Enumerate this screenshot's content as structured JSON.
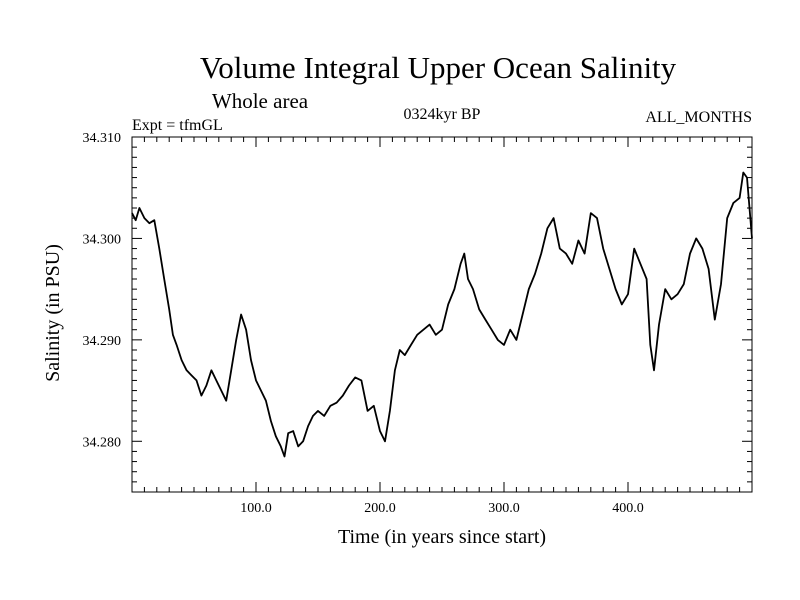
{
  "chart_data": {
    "type": "line",
    "title": "Volume Integral Upper Ocean Salinity",
    "subtitle": "Whole area",
    "annotations": {
      "left": "Expt = tfmGL",
      "center": "0324kyr BP",
      "right": "ALL_MONTHS"
    },
    "xlabel": "Time (in years since start)",
    "ylabel": "Salinity (in PSU)",
    "xlim": [
      0,
      500
    ],
    "ylim": [
      34.275,
      34.31
    ],
    "xticks": [
      100,
      200,
      300,
      400
    ],
    "xtick_labels": [
      "100.0",
      "200.0",
      "300.0",
      "400.0"
    ],
    "yticks": [
      34.28,
      34.29,
      34.3,
      34.31
    ],
    "ytick_labels": [
      "34.280",
      "34.290",
      "34.300",
      "34.310"
    ],
    "grid": false,
    "series": [
      {
        "color": "#000000",
        "x": [
          0,
          3,
          6,
          10,
          14,
          18,
          22,
          26,
          30,
          33,
          36,
          40,
          44,
          48,
          52,
          56,
          60,
          64,
          68,
          72,
          76,
          80,
          84,
          88,
          92,
          96,
          100,
          104,
          108,
          112,
          116,
          120,
          123,
          126,
          130,
          134,
          138,
          142,
          146,
          150,
          155,
          160,
          165,
          170,
          175,
          180,
          185,
          190,
          195,
          200,
          204,
          208,
          212,
          216,
          220,
          225,
          230,
          235,
          240,
          245,
          250,
          255,
          260,
          265,
          268,
          271,
          275,
          280,
          285,
          290,
          295,
          300,
          305,
          310,
          315,
          320,
          325,
          330,
          335,
          340,
          345,
          350,
          355,
          360,
          365,
          370,
          375,
          380,
          385,
          390,
          395,
          400,
          405,
          410,
          415,
          418,
          421,
          425,
          430,
          435,
          440,
          445,
          450,
          455,
          460,
          465,
          470,
          475,
          480,
          485,
          490,
          493,
          496,
          500
        ],
        "y": [
          34.3025,
          34.3018,
          34.303,
          34.302,
          34.3015,
          34.3018,
          34.299,
          34.296,
          34.293,
          34.2905,
          34.2895,
          34.288,
          34.287,
          34.2865,
          34.286,
          34.2845,
          34.2855,
          34.287,
          34.286,
          34.285,
          34.284,
          34.287,
          34.29,
          34.2925,
          34.291,
          34.288,
          34.286,
          34.285,
          34.284,
          34.282,
          34.2805,
          34.2795,
          34.2785,
          34.2808,
          34.281,
          34.2795,
          34.28,
          34.2815,
          34.2825,
          34.283,
          34.2825,
          34.2835,
          34.2838,
          34.2845,
          34.2855,
          34.2863,
          34.286,
          34.283,
          34.2835,
          34.281,
          34.28,
          34.283,
          34.287,
          34.289,
          34.2885,
          34.2895,
          34.2905,
          34.291,
          34.2915,
          34.2905,
          34.291,
          34.2935,
          34.295,
          34.2975,
          34.2985,
          34.296,
          34.295,
          34.293,
          34.292,
          34.291,
          34.29,
          34.2895,
          34.291,
          34.29,
          34.2925,
          34.295,
          34.2965,
          34.2985,
          34.301,
          34.302,
          34.299,
          34.2985,
          34.2975,
          34.2998,
          34.2985,
          34.3025,
          34.302,
          34.299,
          34.297,
          34.295,
          34.2935,
          34.2945,
          34.299,
          34.2975,
          34.296,
          34.2895,
          34.287,
          34.2915,
          34.295,
          34.294,
          34.2945,
          34.2955,
          34.2985,
          34.3,
          34.299,
          34.297,
          34.292,
          34.2955,
          34.302,
          34.3035,
          34.304,
          34.3065,
          34.306,
          34.3
        ]
      }
    ]
  }
}
